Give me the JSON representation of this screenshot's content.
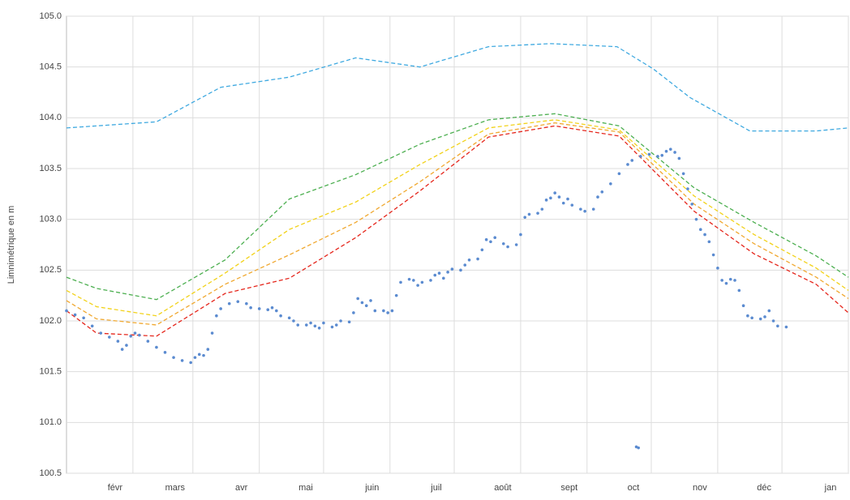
{
  "chart_data": {
    "type": "line",
    "y_label": "Limnimétrique en m",
    "xlim": [
      0,
      365
    ],
    "xticks": [
      {
        "value": 31,
        "label": "févr"
      },
      {
        "value": 59,
        "label": "mars"
      },
      {
        "value": 90,
        "label": "avr"
      },
      {
        "value": 120,
        "label": "mai"
      },
      {
        "value": 151,
        "label": "juin"
      },
      {
        "value": 181,
        "label": "juil"
      },
      {
        "value": 212,
        "label": "août"
      },
      {
        "value": 243,
        "label": "sept"
      },
      {
        "value": 273,
        "label": "oct"
      },
      {
        "value": 304,
        "label": "nov"
      },
      {
        "value": 334,
        "label": "déc"
      },
      {
        "value": 365,
        "label": "jan"
      }
    ],
    "ylim": [
      100.5,
      105.0
    ],
    "yticks": [
      100.5,
      {
        "value": 101,
        "label": "101.0"
      },
      101.5,
      {
        "value": 102,
        "label": "102.0"
      },
      102.5,
      {
        "value": 103,
        "label": "103.0"
      },
      103.5,
      {
        "value": 104,
        "label": "104.0"
      },
      104.5,
      {
        "value": 105,
        "label": "105.0"
      }
    ],
    "grid": true,
    "series": [
      {
        "type": "line",
        "color": "#3fa9e0",
        "x": [
          0,
          42,
          72,
          104,
          135,
          165,
          197,
          226,
          257,
          274,
          291,
          319,
          350,
          365
        ],
        "values": [
          103.9,
          103.96,
          104.3,
          104.4,
          104.59,
          104.5,
          104.7,
          104.73,
          104.7,
          104.48,
          104.2,
          103.87,
          103.87,
          103.9
        ]
      },
      {
        "type": "line",
        "color": "#4caf50",
        "x": [
          0,
          14,
          42,
          74,
          104,
          135,
          165,
          197,
          228,
          258,
          293,
          321,
          350,
          365
        ],
        "values": [
          102.43,
          102.32,
          102.21,
          102.6,
          103.2,
          103.44,
          103.74,
          103.98,
          104.04,
          103.92,
          103.31,
          102.97,
          102.64,
          102.43
        ]
      },
      {
        "type": "line",
        "color": "#f2d21a",
        "x": [
          0,
          14,
          42,
          74,
          104,
          135,
          165,
          197,
          228,
          258,
          293,
          321,
          350,
          365
        ],
        "values": [
          102.3,
          102.14,
          102.05,
          102.47,
          102.9,
          103.17,
          103.54,
          103.9,
          103.98,
          103.88,
          103.23,
          102.85,
          102.52,
          102.3
        ]
      },
      {
        "type": "line",
        "color": "#f0a830",
        "x": [
          0,
          14,
          42,
          74,
          104,
          135,
          165,
          197,
          228,
          258,
          293,
          321,
          350,
          365
        ],
        "values": [
          102.2,
          102.02,
          101.96,
          102.36,
          102.65,
          102.97,
          103.37,
          103.84,
          103.95,
          103.86,
          103.15,
          102.76,
          102.43,
          102.22
        ]
      },
      {
        "type": "line",
        "color": "#e5261c",
        "x": [
          0,
          14,
          42,
          74,
          104,
          135,
          165,
          197,
          228,
          258,
          293,
          321,
          350,
          365
        ],
        "values": [
          102.1,
          101.88,
          101.85,
          102.27,
          102.42,
          102.82,
          103.28,
          103.81,
          103.92,
          103.82,
          103.08,
          102.66,
          102.36,
          102.08
        ]
      },
      {
        "type": "scatter",
        "color": "#5b8bd0",
        "x": [
          0,
          4,
          8,
          12,
          16,
          20,
          24,
          26,
          28,
          30,
          32,
          34,
          38,
          42,
          46,
          50,
          54,
          58,
          60,
          62,
          64,
          66,
          68,
          70,
          72,
          76,
          80,
          84,
          86,
          90,
          94,
          96,
          98,
          100,
          104,
          106,
          108,
          112,
          114,
          116,
          118,
          120,
          124,
          126,
          128,
          132,
          134,
          136,
          138,
          140,
          142,
          144,
          148,
          150,
          152,
          154,
          156,
          160,
          162,
          164,
          166,
          170,
          172,
          174,
          176,
          178,
          180,
          184,
          186,
          188,
          192,
          194,
          196,
          198,
          200,
          204,
          206,
          210,
          212,
          214,
          216,
          220,
          222,
          224,
          226,
          228,
          230,
          232,
          234,
          236,
          240,
          242,
          246,
          248,
          250,
          254,
          258,
          262,
          264,
          266,
          267,
          268,
          272,
          276,
          278,
          280,
          282,
          284,
          286,
          288,
          290,
          292,
          294,
          296,
          298,
          300,
          302,
          304,
          306,
          308,
          310,
          312,
          314,
          316,
          318,
          320,
          324,
          326,
          328,
          330,
          332,
          336
        ],
        "values": [
          102.1,
          102.06,
          102.03,
          101.95,
          101.88,
          101.84,
          101.8,
          101.72,
          101.76,
          101.85,
          101.88,
          101.86,
          101.8,
          101.74,
          101.69,
          101.64,
          101.61,
          101.59,
          101.64,
          101.67,
          101.66,
          101.72,
          101.88,
          102.05,
          102.12,
          102.17,
          102.19,
          102.17,
          102.13,
          102.12,
          102.11,
          102.13,
          102.1,
          102.05,
          102.03,
          102.0,
          101.96,
          101.96,
          101.98,
          101.95,
          101.93,
          101.98,
          101.94,
          101.96,
          102.0,
          101.99,
          102.08,
          102.22,
          102.18,
          102.15,
          102.2,
          102.1,
          102.1,
          102.08,
          102.1,
          102.25,
          102.38,
          102.41,
          102.4,
          102.35,
          102.38,
          102.4,
          102.45,
          102.47,
          102.42,
          102.48,
          102.51,
          102.5,
          102.55,
          102.6,
          102.61,
          102.7,
          102.8,
          102.78,
          102.82,
          102.76,
          102.73,
          102.75,
          102.85,
          103.02,
          103.05,
          103.06,
          103.1,
          103.19,
          103.21,
          103.26,
          103.22,
          103.16,
          103.2,
          103.14,
          103.1,
          103.08,
          103.1,
          103.22,
          103.27,
          103.35,
          103.45,
          103.54,
          103.58,
          100.76,
          100.75,
          103.62,
          103.64,
          103.62,
          103.63,
          103.67,
          103.69,
          103.66,
          103.6,
          103.45,
          103.3,
          103.15,
          103.0,
          102.9,
          102.85,
          102.78,
          102.65,
          102.52,
          102.4,
          102.37,
          102.41,
          102.4,
          102.3,
          102.15,
          102.05,
          102.03,
          102.02,
          102.04,
          102.1,
          102.0,
          101.95,
          101.94
        ]
      }
    ]
  }
}
